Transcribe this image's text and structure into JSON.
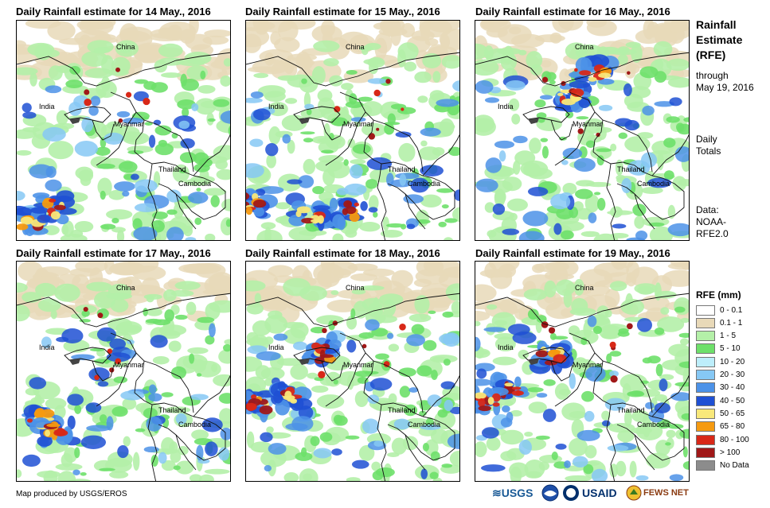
{
  "panels": [
    {
      "title": "Daily Rainfall estimate for 14 May., 2016"
    },
    {
      "title": "Daily Rainfall estimate for 15 May., 2016"
    },
    {
      "title": "Daily Rainfall estimate for 16 May., 2016"
    },
    {
      "title": "Daily Rainfall estimate for 17 May., 2016"
    },
    {
      "title": "Daily Rainfall estimate for 18 May., 2016"
    },
    {
      "title": "Daily Rainfall estimate for 19 May., 2016"
    }
  ],
  "map_labels": {
    "china": "China",
    "india": "India",
    "myanmar": "Myanmar",
    "thailand": "Thailand",
    "cambodia": "Cambodia"
  },
  "sidebar": {
    "title_line1": "Rainfall",
    "title_line2": "Estimate",
    "title_line3": "(RFE)",
    "through": "through",
    "date": "May 19, 2016",
    "daily": "Daily",
    "totals": "Totals",
    "data_label": "Data:",
    "data_src1": "NOAA-",
    "data_src2": "RFE2.0"
  },
  "legend": {
    "title": "RFE (mm)",
    "items": [
      {
        "label": "0 - 0.1",
        "color": "#ffffff"
      },
      {
        "label": "0.1 - 1",
        "color": "#e8d9b8"
      },
      {
        "label": "1 - 5",
        "color": "#b4f0a8"
      },
      {
        "label": "5 - 10",
        "color": "#6ee06a"
      },
      {
        "label": "10 - 20",
        "color": "#bdeefb"
      },
      {
        "label": "20 - 30",
        "color": "#86c8f5"
      },
      {
        "label": "30 - 40",
        "color": "#4c92e8"
      },
      {
        "label": "40 - 50",
        "color": "#1f50d4"
      },
      {
        "label": "50 - 65",
        "color": "#f8e87a"
      },
      {
        "label": "65 - 80",
        "color": "#f59a10"
      },
      {
        "label": "80 - 100",
        "color": "#d82818"
      },
      {
        "label": "> 100",
        "color": "#a01818"
      },
      {
        "label": "No Data",
        "color": "#8c8c8c"
      }
    ]
  },
  "footer": {
    "credit": "Map produced by USGS/EROS"
  },
  "logos": {
    "usgs": "≋USGS",
    "usaid": "USAID",
    "fewsnet": "FEWS NET"
  }
}
